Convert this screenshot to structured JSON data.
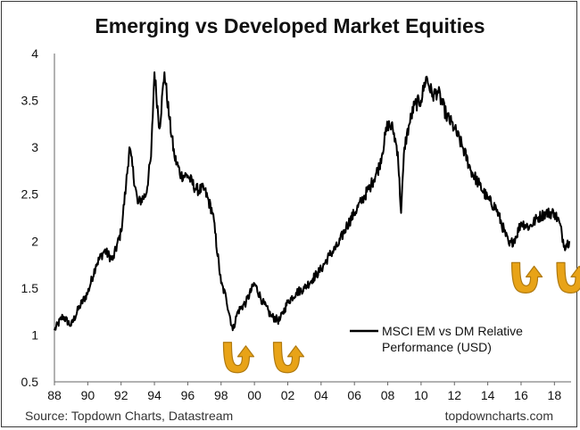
{
  "title": "Emerging vs Developed Market Equities",
  "source": "Source: Topdown Charts, Datastream",
  "website": "topdowncharts.com",
  "colors": {
    "line": "#000000",
    "arrow_fill": "#E8A317",
    "arrow_stroke": "#B07A10",
    "text": "#111111"
  },
  "chart_data": {
    "type": "line",
    "title": "Emerging vs Developed Market Equities",
    "xlabel": "",
    "ylabel": "",
    "ylim": [
      0.5,
      4
    ],
    "xlim": [
      88,
      119
    ],
    "grid": false,
    "y_ticks": [
      0.5,
      1,
      1.5,
      2,
      2.5,
      3,
      3.5,
      4
    ],
    "y_tick_labels": [
      "0.5",
      "1",
      "1.5",
      "2",
      "2.5",
      "3",
      "3.5",
      "4"
    ],
    "x_ticks": [
      88,
      90,
      92,
      94,
      96,
      98,
      100,
      102,
      104,
      106,
      108,
      110,
      112,
      114,
      116,
      118
    ],
    "x_tick_labels": [
      "88",
      "90",
      "92",
      "94",
      "96",
      "98",
      "00",
      "02",
      "04",
      "06",
      "08",
      "10",
      "12",
      "14",
      "16",
      "18"
    ],
    "legend_position": "bottom-right",
    "series": [
      {
        "name": "MSCI EM vs DM Relative Performance (USD)",
        "x": [
          88.0,
          88.5,
          89.0,
          89.5,
          90.0,
          90.5,
          91.0,
          91.5,
          92.0,
          92.3,
          92.5,
          93.0,
          93.5,
          93.8,
          94.0,
          94.3,
          94.6,
          94.9,
          95.2,
          95.6,
          96.0,
          96.5,
          97.0,
          97.5,
          98.0,
          98.3,
          98.7,
          99.0,
          99.5,
          100.0,
          100.5,
          101.0,
          101.5,
          102.0,
          102.5,
          103.0,
          103.5,
          104.0,
          104.5,
          105.0,
          105.5,
          106.0,
          106.5,
          107.0,
          107.5,
          108.0,
          108.3,
          108.6,
          108.8,
          109.0,
          109.3,
          109.6,
          110.0,
          110.3,
          110.7,
          111.0,
          111.5,
          112.0,
          112.5,
          113.0,
          113.5,
          114.0,
          114.5,
          115.0,
          115.3,
          115.7,
          116.0,
          116.5,
          117.0,
          117.5,
          118.0,
          118.3,
          118.6,
          118.9
        ],
        "values": [
          1.05,
          1.2,
          1.1,
          1.3,
          1.45,
          1.75,
          1.9,
          1.8,
          2.1,
          2.6,
          3.0,
          2.4,
          2.5,
          2.9,
          3.8,
          3.2,
          3.8,
          3.3,
          2.9,
          2.7,
          2.7,
          2.55,
          2.55,
          2.3,
          1.55,
          1.4,
          1.05,
          1.25,
          1.35,
          1.55,
          1.35,
          1.2,
          1.15,
          1.35,
          1.45,
          1.5,
          1.6,
          1.7,
          1.85,
          1.95,
          2.15,
          2.3,
          2.45,
          2.6,
          2.8,
          3.25,
          3.2,
          2.95,
          2.3,
          3.0,
          3.25,
          3.45,
          3.5,
          3.75,
          3.55,
          3.6,
          3.35,
          3.2,
          3.0,
          2.75,
          2.6,
          2.45,
          2.35,
          2.1,
          1.95,
          2.05,
          2.2,
          2.15,
          2.25,
          2.3,
          2.3,
          2.2,
          1.95,
          2.0
        ]
      }
    ],
    "annotations": [
      {
        "type": "rebound-arrow",
        "near_x": 99.0,
        "near_y": 0.75
      },
      {
        "type": "rebound-arrow",
        "near_x": 102.0,
        "near_y": 0.75
      },
      {
        "type": "rebound-arrow",
        "near_x": 116.3,
        "near_y": 1.6
      },
      {
        "type": "rebound-arrow",
        "near_x": 119.0,
        "near_y": 1.6
      }
    ]
  }
}
